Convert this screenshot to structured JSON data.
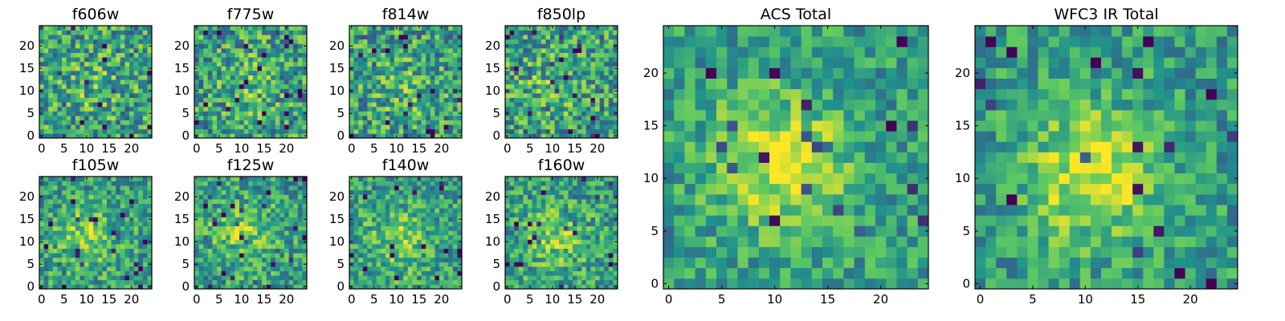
{
  "figure": {
    "colormap": "viridis",
    "colors": [
      "#440154",
      "#3b528b",
      "#21918c",
      "#5ec962",
      "#fde725"
    ]
  },
  "chart_data": [
    {
      "type": "heatmap",
      "title": "f606w",
      "size": 25,
      "xticks": [
        0,
        5,
        10,
        15,
        20
      ],
      "yticks": [
        0,
        5,
        10,
        15,
        20
      ],
      "xlim": [
        0,
        25
      ],
      "ylim": [
        0,
        25
      ]
    },
    {
      "type": "heatmap",
      "title": "f775w",
      "size": 25,
      "xticks": [
        0,
        5,
        10,
        15,
        20
      ],
      "yticks": [
        0,
        5,
        10,
        15,
        20
      ],
      "xlim": [
        0,
        25
      ],
      "ylim": [
        0,
        25
      ]
    },
    {
      "type": "heatmap",
      "title": "f814w",
      "size": 25,
      "xticks": [
        0,
        5,
        10,
        15,
        20
      ],
      "yticks": [
        0,
        5,
        10,
        15,
        20
      ],
      "xlim": [
        0,
        25
      ],
      "ylim": [
        0,
        25
      ]
    },
    {
      "type": "heatmap",
      "title": "f850lp",
      "size": 25,
      "xticks": [
        0,
        5,
        10,
        15,
        20
      ],
      "yticks": [
        0,
        5,
        10,
        15,
        20
      ],
      "xlim": [
        0,
        25
      ],
      "ylim": [
        0,
        25
      ]
    },
    {
      "type": "heatmap",
      "title": "f105w",
      "size": 25,
      "xticks": [
        0,
        5,
        10,
        15,
        20
      ],
      "yticks": [
        0,
        5,
        10,
        15,
        20
      ],
      "xlim": [
        0,
        25
      ],
      "ylim": [
        0,
        25
      ]
    },
    {
      "type": "heatmap",
      "title": "f125w",
      "size": 25,
      "xticks": [
        0,
        5,
        10,
        15,
        20
      ],
      "yticks": [
        0,
        5,
        10,
        15,
        20
      ],
      "xlim": [
        0,
        25
      ],
      "ylim": [
        0,
        25
      ]
    },
    {
      "type": "heatmap",
      "title": "f140w",
      "size": 25,
      "xticks": [
        0,
        5,
        10,
        15,
        20
      ],
      "yticks": [
        0,
        5,
        10,
        15,
        20
      ],
      "xlim": [
        0,
        25
      ],
      "ylim": [
        0,
        25
      ]
    },
    {
      "type": "heatmap",
      "title": "f160w",
      "size": 25,
      "xticks": [
        0,
        5,
        10,
        15,
        20
      ],
      "yticks": [
        0,
        5,
        10,
        15,
        20
      ],
      "xlim": [
        0,
        25
      ],
      "ylim": [
        0,
        25
      ]
    },
    {
      "type": "heatmap",
      "title": "ACS Total",
      "size": 25,
      "xticks": [
        0,
        5,
        10,
        15,
        20
      ],
      "yticks": [
        0,
        5,
        10,
        15,
        20
      ],
      "xlim": [
        0,
        25
      ],
      "ylim": [
        0,
        25
      ]
    },
    {
      "type": "heatmap",
      "title": "WFC3 IR Total",
      "size": 25,
      "xticks": [
        0,
        5,
        10,
        15,
        20
      ],
      "yticks": [
        0,
        5,
        10,
        15,
        20
      ],
      "xlim": [
        0,
        25
      ],
      "ylim": [
        0,
        25
      ]
    }
  ]
}
